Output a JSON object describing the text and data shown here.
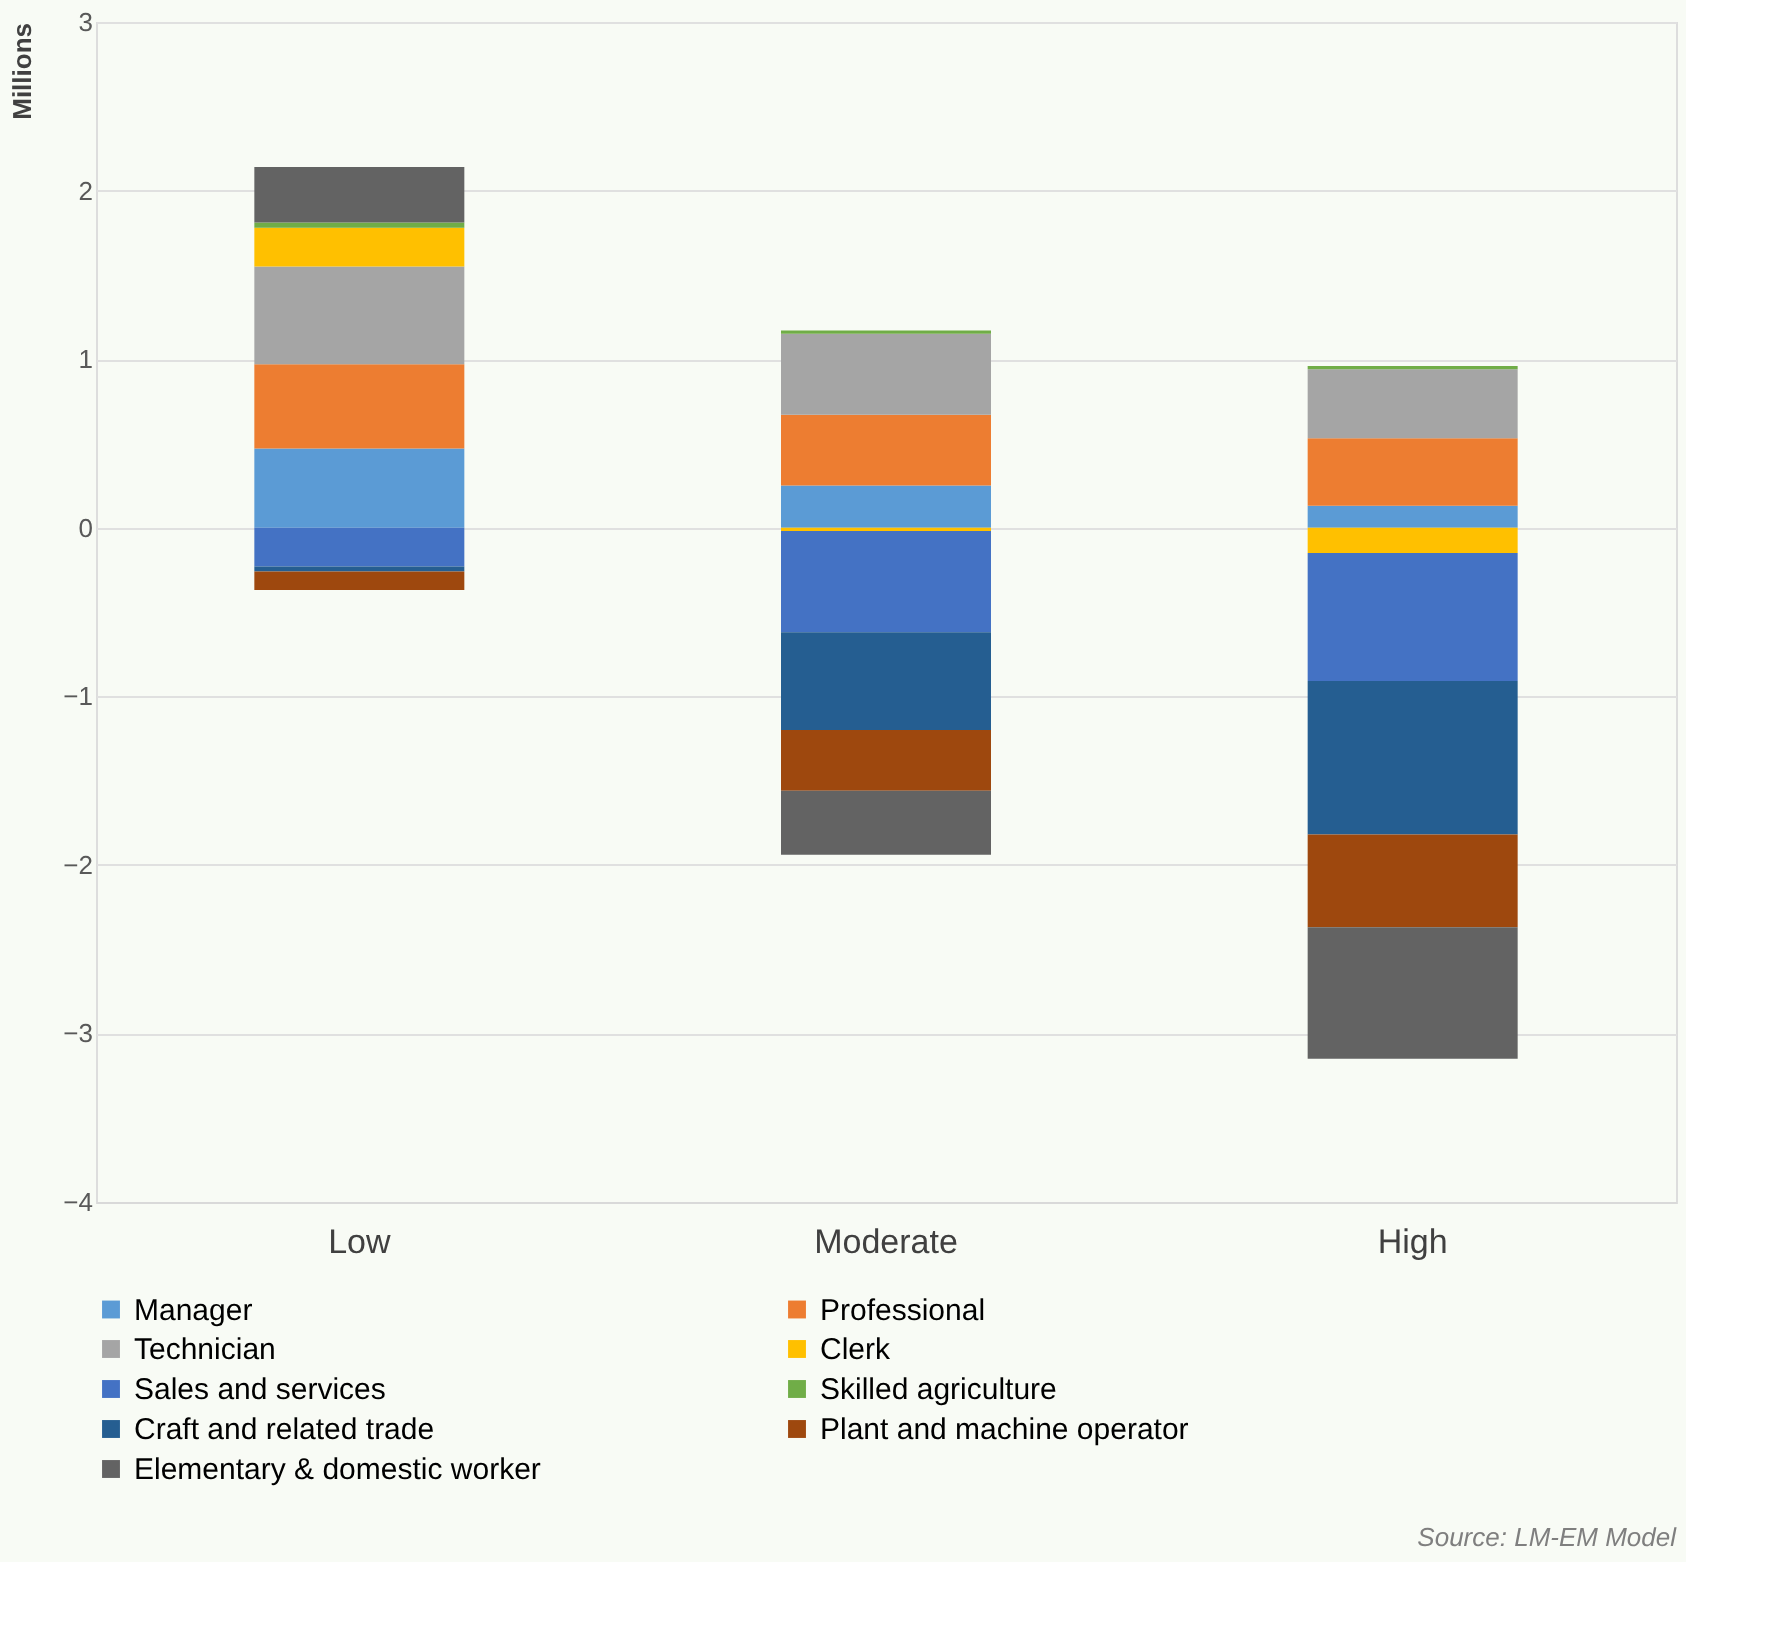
{
  "chart_data": {
    "type": "bar",
    "stacked": true,
    "ylabel": "Millions",
    "categories": [
      "Low",
      "Moderate",
      "High"
    ],
    "series": [
      {
        "name": "Manager",
        "color": "#5b9bd5",
        "values": [
          0.47,
          0.25,
          0.13
        ]
      },
      {
        "name": "Professional",
        "color": "#ed7d31",
        "values": [
          0.5,
          0.42,
          0.4
        ]
      },
      {
        "name": "Technician",
        "color": "#a5a5a5",
        "values": [
          0.58,
          0.48,
          0.41
        ]
      },
      {
        "name": "Clerk",
        "color": "#ffc000",
        "values": [
          0.23,
          -0.02,
          -0.15
        ]
      },
      {
        "name": "Sales and services",
        "color": "#4472c4",
        "values": [
          -0.23,
          -0.6,
          -0.76
        ]
      },
      {
        "name": "Skilled agriculture",
        "color": "#70ad47",
        "values": [
          0.03,
          0.02,
          0.02
        ]
      },
      {
        "name": "Craft and related trade",
        "color": "#255e91",
        "values": [
          -0.03,
          -0.58,
          -0.91
        ]
      },
      {
        "name": "Plant and machine operator",
        "color": "#9e480e",
        "values": [
          -0.11,
          -0.36,
          -0.55
        ]
      },
      {
        "name": "Elementary & domestic worker",
        "color": "#636363",
        "values": [
          0.33,
          -0.38,
          -0.78
        ]
      }
    ],
    "ylim": [
      -4,
      3
    ],
    "yticks": [
      -4,
      -3,
      -2,
      -1,
      0,
      1,
      2,
      3
    ],
    "grid": "y",
    "legend": "bottom",
    "annotations": [
      "Source: LM-EM Model"
    ]
  }
}
